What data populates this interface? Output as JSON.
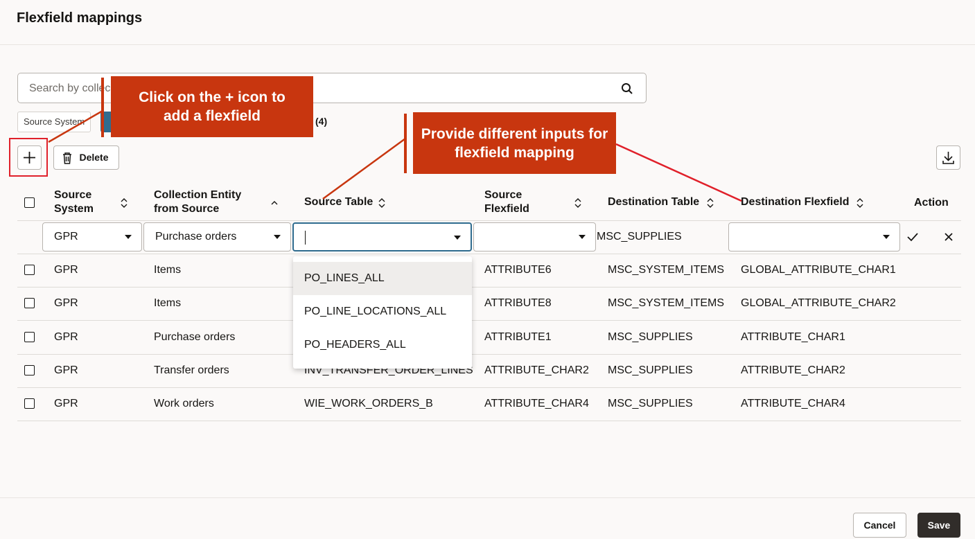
{
  "header": {
    "title": "Flexfield mappings"
  },
  "search": {
    "placeholder": "Search by collec"
  },
  "filters": {
    "chips": [
      "Source System"
    ],
    "count": "(4)"
  },
  "toolbar": {
    "delete": "Delete"
  },
  "table": {
    "columns": [
      "Source System",
      "Collection Entity from Source",
      "Source Table",
      "Source Flexfield",
      "Destination Table",
      "Destination Flexfield",
      "Action"
    ],
    "edit_row": {
      "source_system": "GPR",
      "collection_entity": "Purchase orders",
      "destination_table": "MSC_SUPPLIES"
    },
    "dropdown_options": [
      "PO_LINES_ALL",
      "PO_LINE_LOCATIONS_ALL",
      "PO_HEADERS_ALL"
    ],
    "rows": [
      [
        "GPR",
        "Items",
        null,
        "ATTRIBUTE6",
        "MSC_SYSTEM_ITEMS",
        "GLOBAL_ATTRIBUTE_CHAR1"
      ],
      [
        "GPR",
        "Items",
        null,
        "ATTRIBUTE8",
        "MSC_SYSTEM_ITEMS",
        "GLOBAL_ATTRIBUTE_CHAR2"
      ],
      [
        "GPR",
        "Purchase orders",
        null,
        "ATTRIBUTE1",
        "MSC_SUPPLIES",
        "ATTRIBUTE_CHAR1"
      ],
      [
        "GPR",
        "Transfer orders",
        "INV_TRANSFER_ORDER_LINES",
        "ATTRIBUTE_CHAR2",
        "MSC_SUPPLIES",
        "ATTRIBUTE_CHAR2"
      ],
      [
        "GPR",
        "Work orders",
        "WIE_WORK_ORDERS_B",
        "ATTRIBUTE_CHAR4",
        "MSC_SUPPLIES",
        "ATTRIBUTE_CHAR4"
      ]
    ]
  },
  "callouts": [
    "Click on the + icon to add a flexfield",
    "Provide different inputs for flexfield mapping"
  ],
  "footer": {
    "cancel": "Cancel",
    "save": "Save"
  }
}
